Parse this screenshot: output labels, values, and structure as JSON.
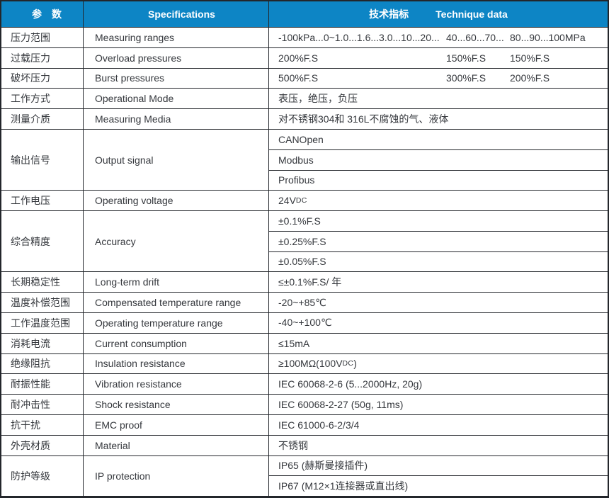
{
  "colors": {
    "header_bg": "#0d85c5",
    "header_text": "#ffffff",
    "border": "#23262b",
    "body_text": "#35383d"
  },
  "header": {
    "param": "参　数",
    "spec": "Specifications",
    "tech_cn": "技术指标",
    "tech_en": "Technique data"
  },
  "rows": [
    {
      "cn": "压力范围",
      "en": "Measuring ranges",
      "segments": [
        "-100kPa...0~1.0...1.6...3.0...10...20...",
        "40...60...70...",
        "80...90...100MPa"
      ]
    },
    {
      "cn": "过载压力",
      "en": "Overload pressures",
      "segments": [
        "200%F.S",
        "150%F.S",
        "150%F.S"
      ]
    },
    {
      "cn": "破坏压力",
      "en": "Burst pressures",
      "segments": [
        "500%F.S",
        "300%F.S",
        "200%F.S"
      ]
    },
    {
      "cn": "工作方式",
      "en": "Operational Mode",
      "value": "表压，绝压，负压"
    },
    {
      "cn": "测量介质",
      "en": "Measuring Media",
      "value": "对不锈钢304和 316L不腐蚀的气、液体"
    },
    {
      "cn": "输出信号",
      "en": "Output signal",
      "options": [
        "CANOpen",
        "Modbus",
        "Profibus"
      ]
    },
    {
      "cn": "工作电压",
      "en": "Operating voltage",
      "value_pre": "24V",
      "value_sub": "DC",
      "value_post": ""
    },
    {
      "cn": "综合精度",
      "en": "Accuracy",
      "options": [
        "±0.1%F.S",
        "±0.25%F.S",
        "±0.05%F.S"
      ]
    },
    {
      "cn": "长期稳定性",
      "en": "Long-term drift",
      "value": "≤±0.1%F.S/ 年"
    },
    {
      "cn": "温度补偿范围",
      "en": "Compensated temperature range",
      "value": "-20~+85℃"
    },
    {
      "cn": "工作温度范围",
      "en": "Operating temperature range",
      "value": "-40~+100℃"
    },
    {
      "cn": "消耗电流",
      "en": "Current consumption",
      "value": "≤15mA"
    },
    {
      "cn": "绝缘阻抗",
      "en": "Insulation resistance",
      "value_pre": "≥100MΩ(100V",
      "value_sub": "DC",
      "value_post": ")"
    },
    {
      "cn": "耐振性能",
      "en": "Vibration resistance",
      "value": "IEC 60068-2-6 (5...2000Hz, 20g)"
    },
    {
      "cn": "耐冲击性",
      "en": "Shock resistance",
      "value": "IEC 60068-2-27 (50g, 11ms)"
    },
    {
      "cn": "抗干扰",
      "en": "EMC proof",
      "value": "IEC 61000-6-2/3/4"
    },
    {
      "cn": "外壳材质",
      "en": "Material",
      "value": "不锈钢"
    },
    {
      "cn": "防护等级",
      "en": "IP protection",
      "options": [
        "IP65 (赫斯曼接插件)",
        "IP67 (M12×1连接器或直出线)"
      ]
    }
  ]
}
